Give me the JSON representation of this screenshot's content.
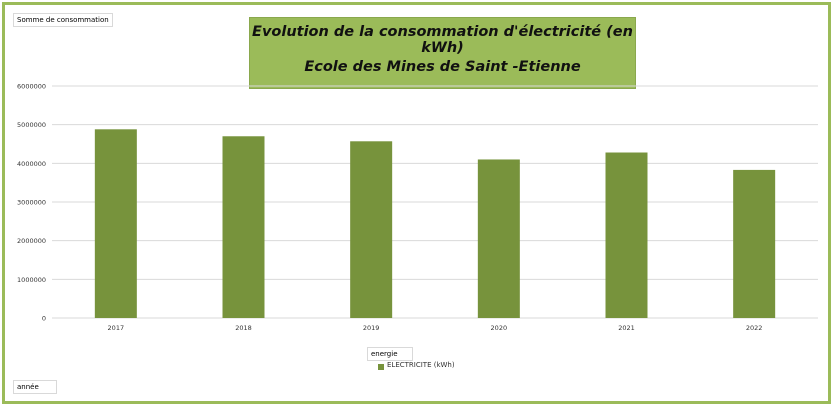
{
  "field_buttons": {
    "value_field": "Somme de consommation",
    "legend_field": "energie",
    "axis_field": "année"
  },
  "title": {
    "line1": "Evolution de la consommation d'électricité (en kWh)",
    "line2": "Ecole des Mines de Saint -Etienne"
  },
  "colors": {
    "bar": "#77933c",
    "frame": "#9bbb59",
    "title_bg": "#9bbb59",
    "grid": "#d9d9d9"
  },
  "chart_data": {
    "type": "bar",
    "title": "Evolution de la consommation d'électricité (en kWh)",
    "subtitle": "Ecole des Mines de Saint -Etienne",
    "categories": [
      "2017",
      "2018",
      "2019",
      "2020",
      "2021",
      "2022"
    ],
    "series": [
      {
        "name": "ELECTRICITE (kWh)",
        "values": [
          4880000,
          4700000,
          4570000,
          4100000,
          4280000,
          3830000
        ]
      }
    ],
    "ylim": [
      0,
      6000000
    ],
    "yticks": [
      "0",
      "1000000",
      "2000000",
      "3000000",
      "4000000",
      "5000000",
      "6000000"
    ],
    "grid": true,
    "legend": "bottom-center"
  }
}
